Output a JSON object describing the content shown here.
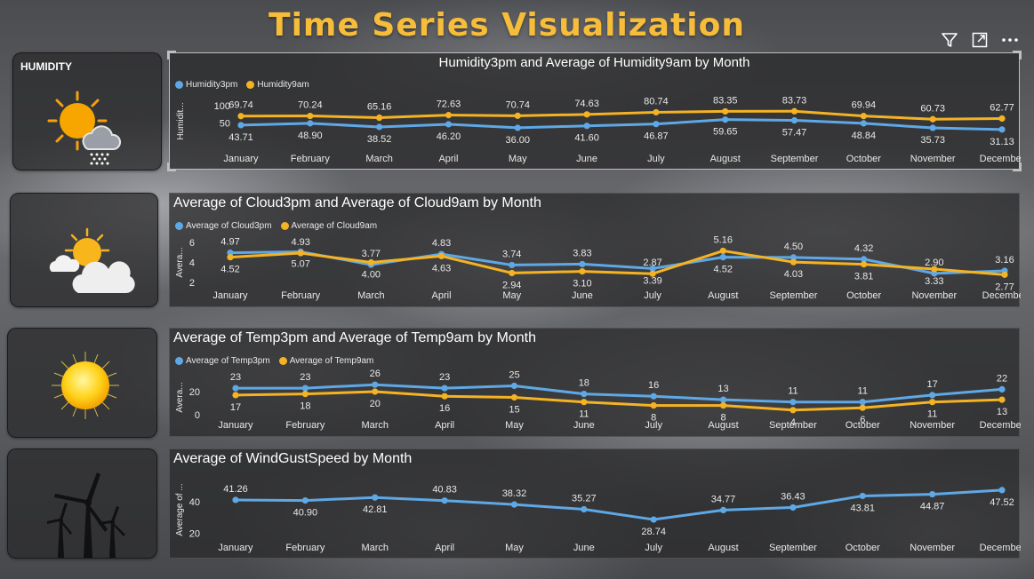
{
  "page": {
    "title": "Time Series Visualization"
  },
  "toolbar": {
    "icons": [
      "filter-icon",
      "expand-icon",
      "more-options-icon"
    ]
  },
  "cards": [
    {
      "label": "HUMIDITY",
      "icon": "sun-rain-cloud-icon"
    },
    {
      "label": "",
      "icon": "sun-cloud-icon"
    },
    {
      "label": "",
      "icon": "sun-icon"
    },
    {
      "label": "",
      "icon": "wind-turbine-icon"
    }
  ],
  "colors": {
    "blue": "#5fa8e6",
    "orange": "#f5b323"
  },
  "chart_data": [
    {
      "type": "line",
      "title": "Humidity3pm and Average of Humidity9am by Month",
      "ylabel": "Humidit...",
      "yticks": [
        "100",
        "50"
      ],
      "ylim": [
        0,
        110
      ],
      "categories": [
        "January",
        "February",
        "March",
        "April",
        "May",
        "June",
        "July",
        "August",
        "September",
        "October",
        "November",
        "December"
      ],
      "series": [
        {
          "name": "Humidity3pm",
          "color": "#5fa8e6",
          "values": [
            43.71,
            48.9,
            38.52,
            46.2,
            36.0,
            41.6,
            46.87,
            59.65,
            57.47,
            48.84,
            35.73,
            31.13
          ],
          "labels": [
            "43.71",
            "48.90",
            "38.52",
            "46.20",
            "36.00",
            "41.60",
            "46.87",
            "59.65",
            "57.47",
            "48.84",
            "35.73",
            "31.13"
          ]
        },
        {
          "name": "Humidity9am",
          "color": "#f5b323",
          "values": [
            69.74,
            70.24,
            65.16,
            72.63,
            70.74,
            74.63,
            80.74,
            83.35,
            83.73,
            69.94,
            60.73,
            62.77
          ],
          "labels": [
            "69.74",
            "70.24",
            "65.16",
            "72.63",
            "70.74",
            "74.63",
            "80.74",
            "83.35",
            "83.73",
            "69.94",
            "60.73",
            "62.77"
          ]
        }
      ]
    },
    {
      "type": "line",
      "title": "Average of Cloud3pm and Average of Cloud9am by Month",
      "ylabel": "Avera...",
      "yticks": [
        "6",
        "4",
        "2"
      ],
      "ylim": [
        2,
        6
      ],
      "categories": [
        "January",
        "February",
        "March",
        "April",
        "May",
        "June",
        "July",
        "August",
        "September",
        "October",
        "November",
        "December"
      ],
      "series": [
        {
          "name": "Average of Cloud3pm",
          "color": "#5fa8e6",
          "values": [
            4.97,
            5.07,
            3.77,
            4.83,
            3.74,
            3.83,
            3.39,
            4.52,
            4.5,
            4.32,
            2.9,
            3.16
          ],
          "labels": [
            "4.97",
            "5.07",
            "3.77",
            "4.83",
            "3.74",
            "3.83",
            "3.39",
            "4.52",
            "4.50",
            "4.32",
            "2.90",
            "3.16"
          ]
        },
        {
          "name": "Average of Cloud9am",
          "color": "#f5b323",
          "values": [
            4.52,
            4.93,
            4.0,
            4.63,
            2.94,
            3.1,
            2.87,
            5.16,
            4.03,
            3.81,
            3.33,
            2.77
          ],
          "labels": [
            "4.52",
            "4.93",
            "4.00",
            "4.63",
            "2.94",
            "3.10",
            "2.87",
            "5.16",
            "4.03",
            "3.81",
            "3.33",
            "2.77"
          ]
        }
      ]
    },
    {
      "type": "line",
      "title": "Average of Temp3pm and Average of Temp9am by Month",
      "ylabel": "Avera...",
      "yticks": [
        "20",
        "0"
      ],
      "ylim": [
        0,
        30
      ],
      "categories": [
        "January",
        "February",
        "March",
        "April",
        "May",
        "June",
        "July",
        "August",
        "September",
        "October",
        "November",
        "December"
      ],
      "series": [
        {
          "name": "Average of Temp3pm",
          "color": "#5fa8e6",
          "values": [
            23,
            23,
            26,
            23,
            25,
            18,
            16,
            13,
            11,
            11,
            17,
            22
          ],
          "labels": [
            "23",
            "23",
            "26",
            "23",
            "25",
            "18",
            "16",
            "13",
            "11",
            "11",
            "17",
            "22"
          ]
        },
        {
          "name": "Average of Temp9am",
          "color": "#f5b323",
          "values": [
            17,
            18,
            20,
            16,
            15,
            11,
            8,
            8,
            4,
            6,
            11,
            13
          ],
          "labels": [
            "17",
            "18",
            "20",
            "16",
            "15",
            "11",
            "8",
            "8",
            "4",
            "6",
            "11",
            "13"
          ]
        }
      ]
    },
    {
      "type": "line",
      "title": "Average of WindGustSpeed by Month",
      "ylabel": "Average of ...",
      "yticks": [
        "40",
        "20"
      ],
      "ylim": [
        18,
        52
      ],
      "categories": [
        "January",
        "February",
        "March",
        "April",
        "May",
        "June",
        "July",
        "August",
        "September",
        "October",
        "November",
        "December"
      ],
      "series": [
        {
          "name": "",
          "color": "#5fa8e6",
          "values": [
            41.26,
            40.9,
            42.81,
            40.83,
            38.32,
            35.27,
            28.74,
            34.77,
            36.43,
            43.81,
            44.87,
            47.52
          ],
          "labels": [
            "41.26",
            "40.90",
            "42.81",
            "40.83",
            "38.32",
            "35.27",
            "28.74",
            "34.77",
            "36.43",
            "43.81",
            "44.87",
            "47.52"
          ]
        }
      ]
    }
  ]
}
